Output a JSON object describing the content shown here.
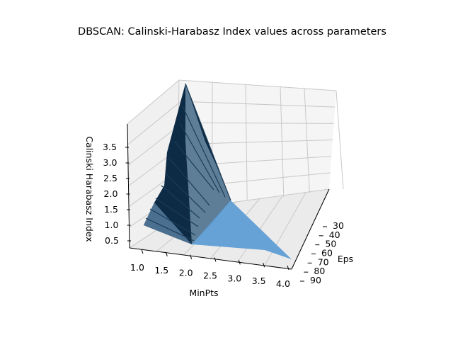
{
  "chart_data": {
    "type": "surface3d",
    "title": "DBSCAN: Calinski-Harabasz Index values across parameters",
    "xlabel": "MinPts",
    "ylabel": "Eps",
    "zlabel": "Calinski Harabasz Index",
    "x_ticks": [
      "1.0",
      "1.5",
      "2.0",
      "2.5",
      "3.0",
      "3.5",
      "4.0"
    ],
    "y_ticks": [
      "30",
      "40",
      "50",
      "60",
      "70",
      "80",
      "90"
    ],
    "z_ticks": [
      "0.5",
      "1.0",
      "1.5",
      "2.0",
      "2.5",
      "3.0",
      "3.5"
    ],
    "xlim": [
      1,
      4
    ],
    "ylim": [
      25,
      95
    ],
    "zlim": [
      0.3,
      3.9
    ],
    "colors": {
      "surface": "#5b9bd5",
      "shadow": "#0d2b45",
      "pane": "#f2f2f2",
      "grid": "#c8c8c8"
    },
    "surface_points": [
      {
        "minpts": 1.0,
        "eps": 25,
        "ch": 3.9
      },
      {
        "minpts": 1.0,
        "eps": 95,
        "ch": 0.8
      },
      {
        "minpts": 2.0,
        "eps": 25,
        "ch": 1.2
      },
      {
        "minpts": 2.0,
        "eps": 95,
        "ch": 0.25
      },
      {
        "minpts": 4.0,
        "eps": 25,
        "ch": 1.0
      },
      {
        "minpts": 4.0,
        "eps": 95,
        "ch": 0.25
      }
    ]
  }
}
